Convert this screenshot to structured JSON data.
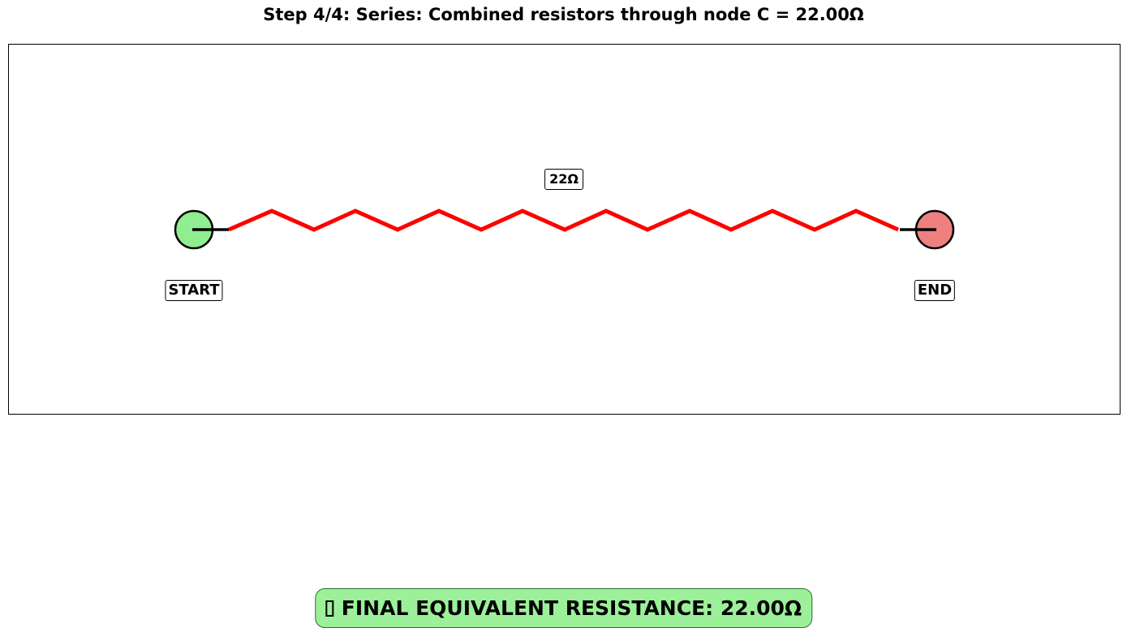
{
  "title": "Step 4/4: Series: Combined resistors through node C = 22.00Ω",
  "circuit": {
    "resistor_label": "22Ω",
    "resistor_color": "#ff0000",
    "start_label": "START",
    "end_label": "END",
    "start_color": "#90ee90",
    "end_color": "#f08080"
  },
  "result": {
    "icon": "check-icon",
    "text": "FINAL EQUIVALENT RESISTANCE: 22.00Ω",
    "background": "#9df09a"
  }
}
